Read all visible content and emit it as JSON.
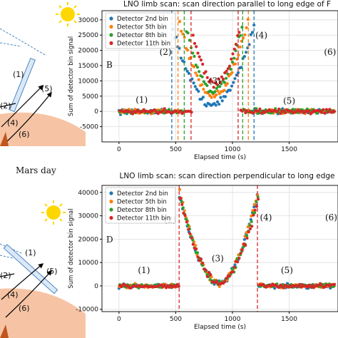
{
  "colors": {
    "blue": "#1f77b4",
    "orange": "#ff7f0e",
    "green": "#2ca02c",
    "red": "#d62728",
    "mars": "#f6c4a4",
    "sun": "#ffd700"
  },
  "left_panels": {
    "top_caption": "Mars day",
    "labels_top": [
      "(1)",
      "(2)",
      "(4)",
      "(6)",
      "(5)"
    ],
    "labels_bottom": [
      "(1)",
      "(2)",
      "(4)",
      "(6)",
      "(5)"
    ]
  },
  "chart_data": [
    {
      "type": "scatter",
      "panel_letter": "B",
      "title": "LNO limb scan: scan direction parallel to long edge of F",
      "xlabel": "Elapsed time (s)",
      "ylabel": "Sum of detector bin signal",
      "xlim": [
        -150,
        1930
      ],
      "ylim": [
        -10000,
        33000
      ],
      "xticks": [
        0,
        500,
        1000,
        1500
      ],
      "yticks": [
        -5000,
        0,
        5000,
        10000,
        15000,
        20000,
        25000,
        30000
      ],
      "grid": true,
      "legend_position": "top-left",
      "series": [
        {
          "name": "Detector 2nd bin",
          "color": "#1f77b4",
          "rise": 465,
          "fall": 1190,
          "peak": 28000,
          "trough": 2000
        },
        {
          "name": "Detector 5th bin",
          "color": "#ff7f0e",
          "rise": 520,
          "fall": 1140,
          "peak": 31000,
          "trough": 4500
        },
        {
          "name": "Detector 8th bin",
          "color": "#2ca02c",
          "rise": 575,
          "fall": 1090,
          "peak": 29000,
          "trough": 6500
        },
        {
          "name": "Detector 11th bin",
          "color": "#d62728",
          "rise": 635,
          "fall": 1050,
          "peak": 26000,
          "trough": 9000
        }
      ],
      "vlines": [
        {
          "x": 465,
          "color": "#1f77b4"
        },
        {
          "x": 520,
          "color": "#ff7f0e"
        },
        {
          "x": 575,
          "color": "#2ca02c"
        },
        {
          "x": 635,
          "color": "#d62728"
        },
        {
          "x": 1050,
          "color": "#d62728"
        },
        {
          "x": 1090,
          "color": "#2ca02c"
        },
        {
          "x": 1140,
          "color": "#ff7f0e"
        },
        {
          "x": 1190,
          "color": "#1f77b4"
        }
      ],
      "annotations": [
        {
          "text": "(1)",
          "x": 200,
          "y": 2800
        },
        {
          "text": "(2)",
          "x": 410,
          "y": 18500
        },
        {
          "text": "(3)",
          "x": 845,
          "y": 9000
        },
        {
          "text": "(4)",
          "x": 1255,
          "y": 24000
        },
        {
          "text": "(5)",
          "x": 1500,
          "y": 2500
        },
        {
          "text": "(6)",
          "x": 1860,
          "y": 18500
        }
      ]
    },
    {
      "type": "scatter",
      "panel_letter": "D",
      "title": "LNO limb scan: scan direction perpendicular to long edge",
      "xlabel": "Elapsed time (s)",
      "ylabel": "Sum of detector bin signal",
      "xlim": [
        -150,
        1930
      ],
      "ylim": [
        -11000,
        43000
      ],
      "xticks": [
        0,
        500,
        1000,
        1500
      ],
      "yticks": [
        -10000,
        0,
        10000,
        20000,
        30000,
        40000
      ],
      "grid": true,
      "legend_position": "top-left",
      "series": [
        {
          "name": "Detector 2nd bin",
          "color": "#1f77b4",
          "rise": 530,
          "fall": 1220,
          "peak": 39000,
          "trough": 1000
        },
        {
          "name": "Detector 5th bin",
          "color": "#ff7f0e",
          "rise": 530,
          "fall": 1220,
          "peak": 40500,
          "trough": 1000
        },
        {
          "name": "Detector 8th bin",
          "color": "#2ca02c",
          "rise": 530,
          "fall": 1220,
          "peak": 38000,
          "trough": 1000
        },
        {
          "name": "Detector 11th bin",
          "color": "#d62728",
          "rise": 530,
          "fall": 1220,
          "peak": 37000,
          "trough": 1000
        }
      ],
      "vlines": [
        {
          "x": 530,
          "color": "#d62728"
        },
        {
          "x": 1220,
          "color": "#d62728"
        }
      ],
      "annotations": [
        {
          "text": "(1)",
          "x": 220,
          "y": 5500
        },
        {
          "text": "(2)",
          "x": 450,
          "y": 27000
        },
        {
          "text": "(3)",
          "x": 870,
          "y": 10500
        },
        {
          "text": "(4)",
          "x": 1295,
          "y": 28000
        },
        {
          "text": "(5)",
          "x": 1480,
          "y": 5500
        },
        {
          "text": "(6)",
          "x": 1870,
          "y": 28000
        }
      ]
    }
  ]
}
